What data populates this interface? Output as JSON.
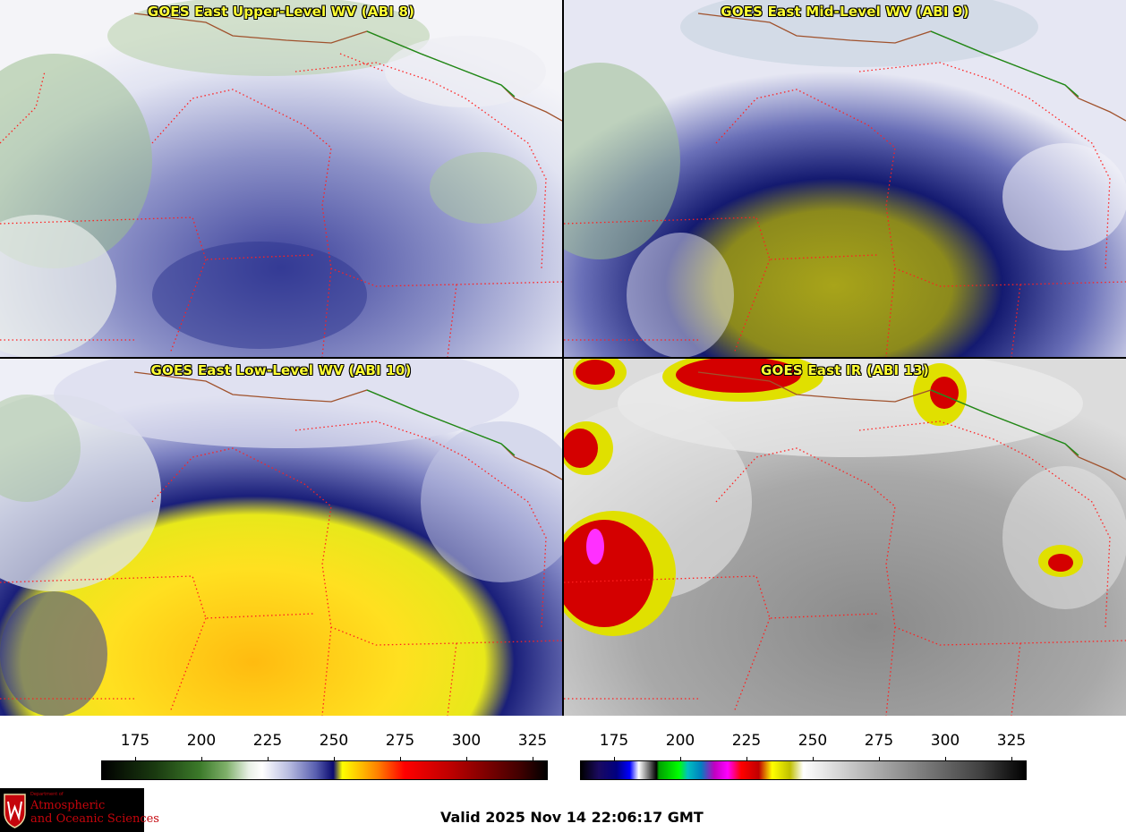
{
  "panels": [
    {
      "title": "GOES East Upper-Level WV (ABI 8)"
    },
    {
      "title": "GOES East Mid-Level WV (ABI 9)"
    },
    {
      "title": "GOES East Low-Level WV (ABI 10)"
    },
    {
      "title": "GOES East IR (ABI 13)"
    }
  ],
  "colorbars": {
    "wv": {
      "ticks": [
        "175",
        "200",
        "225",
        "250",
        "275",
        "300",
        "325"
      ]
    },
    "ir": {
      "ticks": [
        "175",
        "200",
        "225",
        "250",
        "275",
        "300",
        "325"
      ]
    }
  },
  "logo": {
    "line1": "Department of",
    "line2": "Atmospheric",
    "line3": "and Oceanic Sciences"
  },
  "valid_text": "Valid 2025 Nov 14 22:06:17 GMT",
  "colors": {
    "state_border": "#ff2020",
    "country_border": "#a0522d",
    "canada_border": "#1a8f1a",
    "title_text": "#ffff33"
  }
}
